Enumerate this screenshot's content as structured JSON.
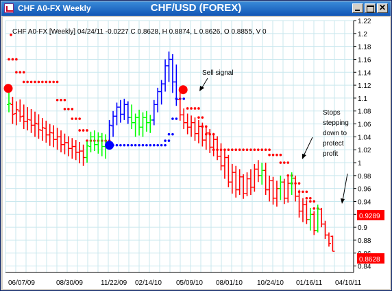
{
  "window": {
    "title": "CHF A0-FX Weekly",
    "heading": "CHF/USD (FOREX)",
    "buttons": {
      "minimize": "_",
      "maximize": "□",
      "close": "✕"
    }
  },
  "chart_data": {
    "type": "ohlc",
    "info_line": "CHF A0-FX [Weekly] 04/24/11  -0.0227 C 0.8628, H 0.8874, L 0.8626, O 0.8855, V 0",
    "ylim": [
      0.83,
      1.22
    ],
    "y_ticks": [
      "1.22",
      "1.2",
      "1.18",
      "1.16",
      "1.14",
      "1.12",
      "1.1",
      "1.08",
      "1.06",
      "1.04",
      "1.02",
      "1",
      "0.98",
      "0.96",
      "0.94",
      "0.92",
      "0.9",
      "0.88",
      "0.86",
      "0.84"
    ],
    "x_ticks": [
      "06/07/09",
      "08/30/09",
      "11/22/09",
      "02/14/10",
      "05/09/10",
      "08/01/10",
      "10/24/10",
      "01/16/11",
      "04/10/11"
    ],
    "price_badges": [
      {
        "value": "0.9289",
        "color": "#ff0000"
      },
      {
        "value": "0.8628",
        "color": "#ff0000"
      }
    ],
    "colors": {
      "down": "#ff0000",
      "up": "#00ff00",
      "blue": "#0000ff"
    },
    "bars": [
      {
        "o": 1.09,
        "h": 1.118,
        "l": 1.078,
        "c": 1.092,
        "color": "green"
      },
      {
        "o": 1.09,
        "h": 1.102,
        "l": 1.06,
        "c": 1.075,
        "color": "red"
      },
      {
        "o": 1.076,
        "h": 1.095,
        "l": 1.058,
        "c": 1.082,
        "color": "red"
      },
      {
        "o": 1.08,
        "h": 1.098,
        "l": 1.063,
        "c": 1.071,
        "color": "red"
      },
      {
        "o": 1.072,
        "h": 1.09,
        "l": 1.052,
        "c": 1.064,
        "color": "red"
      },
      {
        "o": 1.064,
        "h": 1.086,
        "l": 1.05,
        "c": 1.067,
        "color": "red"
      },
      {
        "o": 1.066,
        "h": 1.083,
        "l": 1.046,
        "c": 1.058,
        "color": "red"
      },
      {
        "o": 1.058,
        "h": 1.079,
        "l": 1.04,
        "c": 1.061,
        "color": "red"
      },
      {
        "o": 1.06,
        "h": 1.075,
        "l": 1.037,
        "c": 1.051,
        "color": "red"
      },
      {
        "o": 1.05,
        "h": 1.069,
        "l": 1.034,
        "c": 1.054,
        "color": "red"
      },
      {
        "o": 1.053,
        "h": 1.065,
        "l": 1.031,
        "c": 1.043,
        "color": "red"
      },
      {
        "o": 1.043,
        "h": 1.06,
        "l": 1.026,
        "c": 1.047,
        "color": "red"
      },
      {
        "o": 1.046,
        "h": 1.058,
        "l": 1.024,
        "c": 1.036,
        "color": "red"
      },
      {
        "o": 1.036,
        "h": 1.054,
        "l": 1.02,
        "c": 1.04,
        "color": "red"
      },
      {
        "o": 1.04,
        "h": 1.05,
        "l": 1.016,
        "c": 1.028,
        "color": "red"
      },
      {
        "o": 1.028,
        "h": 1.045,
        "l": 1.013,
        "c": 1.031,
        "color": "red"
      },
      {
        "o": 1.031,
        "h": 1.041,
        "l": 1.01,
        "c": 1.022,
        "color": "red"
      },
      {
        "o": 1.022,
        "h": 1.038,
        "l": 1.006,
        "c": 1.025,
        "color": "red"
      },
      {
        "o": 1.025,
        "h": 1.035,
        "l": 1.004,
        "c": 1.016,
        "color": "red"
      },
      {
        "o": 1.016,
        "h": 1.032,
        "l": 0.999,
        "c": 1.018,
        "color": "red"
      },
      {
        "o": 1.018,
        "h": 1.028,
        "l": 0.995,
        "c": 1.008,
        "color": "red"
      },
      {
        "o": 1.008,
        "h": 1.033,
        "l": 1.0,
        "c": 1.026,
        "color": "green"
      },
      {
        "o": 1.025,
        "h": 1.048,
        "l": 1.016,
        "c": 1.04,
        "color": "green"
      },
      {
        "o": 1.04,
        "h": 1.05,
        "l": 1.018,
        "c": 1.028,
        "color": "green"
      },
      {
        "o": 1.028,
        "h": 1.047,
        "l": 1.014,
        "c": 1.04,
        "color": "green"
      },
      {
        "o": 1.04,
        "h": 1.046,
        "l": 1.01,
        "c": 1.025,
        "color": "green"
      },
      {
        "o": 1.025,
        "h": 1.044,
        "l": 1.006,
        "c": 1.032,
        "color": "green"
      },
      {
        "o": 1.032,
        "h": 1.066,
        "l": 1.022,
        "c": 1.058,
        "color": "blue"
      },
      {
        "o": 1.057,
        "h": 1.08,
        "l": 1.04,
        "c": 1.072,
        "color": "blue"
      },
      {
        "o": 1.072,
        "h": 1.093,
        "l": 1.058,
        "c": 1.086,
        "color": "blue"
      },
      {
        "o": 1.086,
        "h": 1.097,
        "l": 1.062,
        "c": 1.075,
        "color": "blue"
      },
      {
        "o": 1.075,
        "h": 1.099,
        "l": 1.066,
        "c": 1.09,
        "color": "blue"
      },
      {
        "o": 1.09,
        "h": 1.095,
        "l": 1.06,
        "c": 1.07,
        "color": "blue"
      },
      {
        "o": 1.07,
        "h": 1.09,
        "l": 1.052,
        "c": 1.062,
        "color": "green"
      },
      {
        "o": 1.062,
        "h": 1.076,
        "l": 1.04,
        "c": 1.07,
        "color": "green"
      },
      {
        "o": 1.07,
        "h": 1.082,
        "l": 1.042,
        "c": 1.055,
        "color": "green"
      },
      {
        "o": 1.055,
        "h": 1.078,
        "l": 1.04,
        "c": 1.07,
        "color": "green"
      },
      {
        "o": 1.07,
        "h": 1.08,
        "l": 1.048,
        "c": 1.062,
        "color": "green"
      },
      {
        "o": 1.062,
        "h": 1.074,
        "l": 1.046,
        "c": 1.066,
        "color": "green"
      },
      {
        "o": 1.066,
        "h": 1.097,
        "l": 1.058,
        "c": 1.09,
        "color": "blue"
      },
      {
        "o": 1.09,
        "h": 1.116,
        "l": 1.078,
        "c": 1.11,
        "color": "blue"
      },
      {
        "o": 1.11,
        "h": 1.128,
        "l": 1.09,
        "c": 1.122,
        "color": "blue"
      },
      {
        "o": 1.122,
        "h": 1.16,
        "l": 1.11,
        "c": 1.15,
        "color": "blue"
      },
      {
        "o": 1.15,
        "h": 1.172,
        "l": 1.125,
        "c": 1.16,
        "color": "blue"
      },
      {
        "o": 1.16,
        "h": 1.168,
        "l": 1.108,
        "c": 1.125,
        "color": "blue"
      },
      {
        "o": 1.125,
        "h": 1.152,
        "l": 1.088,
        "c": 1.098,
        "color": "blue"
      },
      {
        "o": 1.098,
        "h": 1.11,
        "l": 1.065,
        "c": 1.074,
        "color": "red"
      },
      {
        "o": 1.074,
        "h": 1.084,
        "l": 1.052,
        "c": 1.062,
        "color": "red"
      },
      {
        "o": 1.062,
        "h": 1.076,
        "l": 1.044,
        "c": 1.055,
        "color": "red"
      },
      {
        "o": 1.055,
        "h": 1.073,
        "l": 1.04,
        "c": 1.062,
        "color": "red"
      },
      {
        "o": 1.062,
        "h": 1.07,
        "l": 1.034,
        "c": 1.045,
        "color": "red"
      },
      {
        "o": 1.045,
        "h": 1.066,
        "l": 1.03,
        "c": 1.056,
        "color": "red"
      },
      {
        "o": 1.056,
        "h": 1.062,
        "l": 1.025,
        "c": 1.035,
        "color": "red"
      },
      {
        "o": 1.035,
        "h": 1.056,
        "l": 1.02,
        "c": 1.046,
        "color": "red"
      },
      {
        "o": 1.046,
        "h": 1.052,
        "l": 1.015,
        "c": 1.024,
        "color": "red"
      },
      {
        "o": 1.024,
        "h": 1.046,
        "l": 1.01,
        "c": 1.036,
        "color": "red"
      },
      {
        "o": 1.036,
        "h": 1.041,
        "l": 1.004,
        "c": 1.01,
        "color": "red"
      },
      {
        "o": 1.01,
        "h": 1.03,
        "l": 0.988,
        "c": 0.995,
        "color": "red"
      },
      {
        "o": 0.995,
        "h": 1.02,
        "l": 0.975,
        "c": 1.008,
        "color": "red"
      },
      {
        "o": 1.008,
        "h": 1.012,
        "l": 0.962,
        "c": 0.97,
        "color": "red"
      },
      {
        "o": 0.97,
        "h": 0.998,
        "l": 0.952,
        "c": 0.985,
        "color": "red"
      },
      {
        "o": 0.985,
        "h": 0.995,
        "l": 0.946,
        "c": 0.958,
        "color": "red"
      },
      {
        "o": 0.958,
        "h": 0.99,
        "l": 0.95,
        "c": 0.978,
        "color": "red"
      },
      {
        "o": 0.978,
        "h": 0.982,
        "l": 0.944,
        "c": 0.952,
        "color": "red"
      },
      {
        "o": 0.952,
        "h": 0.985,
        "l": 0.948,
        "c": 0.975,
        "color": "red"
      },
      {
        "o": 0.975,
        "h": 0.99,
        "l": 0.95,
        "c": 0.962,
        "color": "red"
      },
      {
        "o": 0.962,
        "h": 0.998,
        "l": 0.955,
        "c": 0.99,
        "color": "red"
      },
      {
        "o": 0.99,
        "h": 1.004,
        "l": 0.97,
        "c": 0.98,
        "color": "red"
      },
      {
        "o": 0.98,
        "h": 1.0,
        "l": 0.966,
        "c": 0.988,
        "color": "green"
      },
      {
        "o": 0.988,
        "h": 1.0,
        "l": 0.95,
        "c": 0.958,
        "color": "red"
      },
      {
        "o": 0.958,
        "h": 0.98,
        "l": 0.94,
        "c": 0.972,
        "color": "red"
      },
      {
        "o": 0.972,
        "h": 0.978,
        "l": 0.935,
        "c": 0.945,
        "color": "red"
      },
      {
        "o": 0.945,
        "h": 0.972,
        "l": 0.932,
        "c": 0.96,
        "color": "red"
      },
      {
        "o": 0.96,
        "h": 0.98,
        "l": 0.942,
        "c": 0.97,
        "color": "green"
      },
      {
        "o": 0.97,
        "h": 0.975,
        "l": 0.936,
        "c": 0.945,
        "color": "red"
      },
      {
        "o": 0.945,
        "h": 0.978,
        "l": 0.938,
        "c": 0.968,
        "color": "red"
      },
      {
        "o": 0.968,
        "h": 0.985,
        "l": 0.95,
        "c": 0.976,
        "color": "green"
      },
      {
        "o": 0.976,
        "h": 0.98,
        "l": 0.94,
        "c": 0.948,
        "color": "red"
      },
      {
        "o": 0.948,
        "h": 0.958,
        "l": 0.915,
        "c": 0.925,
        "color": "red"
      },
      {
        "o": 0.925,
        "h": 0.945,
        "l": 0.908,
        "c": 0.935,
        "color": "red"
      },
      {
        "o": 0.935,
        "h": 0.942,
        "l": 0.905,
        "c": 0.912,
        "color": "red"
      },
      {
        "o": 0.912,
        "h": 0.93,
        "l": 0.895,
        "c": 0.92,
        "color": "green"
      },
      {
        "o": 0.92,
        "h": 0.925,
        "l": 0.888,
        "c": 0.895,
        "color": "red"
      },
      {
        "o": 0.895,
        "h": 0.935,
        "l": 0.892,
        "c": 0.928,
        "color": "green"
      },
      {
        "o": 0.928,
        "h": 0.93,
        "l": 0.9,
        "c": 0.905,
        "color": "red"
      },
      {
        "o": 0.905,
        "h": 0.91,
        "l": 0.882,
        "c": 0.888,
        "color": "red"
      },
      {
        "o": 0.888,
        "h": 0.892,
        "l": 0.87,
        "c": 0.875,
        "color": "red"
      },
      {
        "o": 0.886,
        "h": 0.887,
        "l": 0.8626,
        "c": 0.8628,
        "color": "red"
      }
    ],
    "stop_segments": [
      {
        "color": "red",
        "level": 1.16,
        "from": 0,
        "to": 2
      },
      {
        "color": "red",
        "level": 1.14,
        "from": 2,
        "to": 4
      },
      {
        "color": "red",
        "level": 1.125,
        "from": 4,
        "to": 13
      },
      {
        "color": "red",
        "level": 1.097,
        "from": 13,
        "to": 15
      },
      {
        "color": "red",
        "level": 1.083,
        "from": 15,
        "to": 17
      },
      {
        "color": "red",
        "level": 1.068,
        "from": 17,
        "to": 19
      },
      {
        "color": "red",
        "level": 1.05,
        "from": 19,
        "to": 21
      },
      {
        "color": "red",
        "level": 1.034,
        "from": 21,
        "to": 27
      },
      {
        "color": "blue",
        "level": 1.027,
        "from": 28,
        "to": 42
      },
      {
        "color": "blue",
        "level": 1.034,
        "from": 42,
        "to": 43
      },
      {
        "color": "blue",
        "level": 1.044,
        "from": 43,
        "to": 44
      },
      {
        "color": "blue",
        "level": 1.068,
        "from": 44,
        "to": 45
      },
      {
        "color": "blue",
        "level": 1.099,
        "from": 45,
        "to": 47
      },
      {
        "color": "red",
        "level": 1.084,
        "from": 48,
        "to": 51
      },
      {
        "color": "red",
        "level": 1.07,
        "from": 51,
        "to": 52
      },
      {
        "color": "red",
        "level": 1.056,
        "from": 52,
        "to": 53
      },
      {
        "color": "red",
        "level": 1.044,
        "from": 53,
        "to": 55
      },
      {
        "color": "red",
        "level": 1.02,
        "from": 55,
        "to": 70
      },
      {
        "color": "red",
        "level": 1.012,
        "from": 70,
        "to": 73
      },
      {
        "color": "red",
        "level": 1.0,
        "from": 73,
        "to": 75
      },
      {
        "color": "red",
        "level": 0.98,
        "from": 75,
        "to": 76
      },
      {
        "color": "red",
        "level": 0.968,
        "from": 76,
        "to": 78
      },
      {
        "color": "red",
        "level": 0.955,
        "from": 78,
        "to": 80
      },
      {
        "color": "red",
        "level": 0.945,
        "from": 80,
        "to": 81
      },
      {
        "color": "red",
        "level": 0.94,
        "from": 81,
        "to": 82
      },
      {
        "color": "red",
        "level": 0.929,
        "from": 82,
        "to": 83
      }
    ],
    "markers": [
      {
        "color": "red",
        "bar": 0,
        "y": 1.115
      },
      {
        "color": "blue",
        "bar": 27,
        "y": 1.027
      },
      {
        "color": "red",
        "bar": 47,
        "y": 1.113
      }
    ],
    "annotations": [
      {
        "name": "annotation-sell-signal",
        "lines": [
          "Sell signal"
        ]
      },
      {
        "name": "annotation-stops-stepping",
        "lines": [
          "Stops",
          "stepping",
          "down to",
          "protect",
          "profit"
        ]
      }
    ]
  }
}
